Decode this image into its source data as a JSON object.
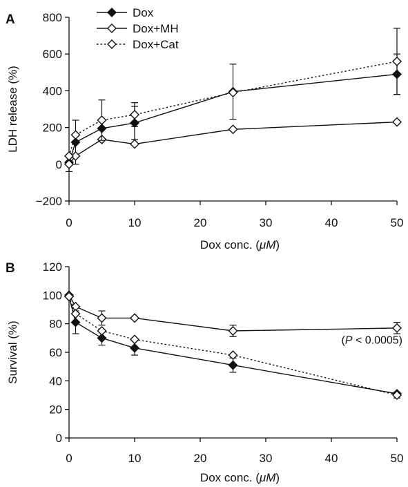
{
  "chart_data": [
    {
      "type": "line",
      "panel_label": "A",
      "title": "",
      "xlabel_main": "Dox conc. (",
      "xlabel_unit": "μM",
      "xlabel_close": ")",
      "ylabel": "LDH release (%)",
      "xlim": [
        0,
        50
      ],
      "ylim": [
        -200,
        800
      ],
      "xticks": [
        0,
        10,
        20,
        30,
        40,
        50
      ],
      "yticks": [
        -200,
        0,
        200,
        400,
        600,
        800
      ],
      "ytick_labels": [
        "−200",
        "0",
        "200",
        "400",
        "600",
        "800"
      ],
      "grid": false,
      "legend_position": "top-left",
      "x": [
        0,
        1,
        5,
        10,
        25,
        50
      ],
      "series": [
        {
          "name": "Dox",
          "marker": "filled-diamond",
          "line": "solid",
          "values": [
            10,
            120,
            195,
            225,
            395,
            490
          ],
          "error": [
            null,
            120,
            null,
            90,
            150,
            110
          ]
        },
        {
          "name": "Dox+MH",
          "marker": "open-diamond",
          "line": "solid",
          "values": [
            0,
            45,
            135,
            110,
            190,
            230
          ],
          "error": [
            40,
            null,
            null,
            null,
            null,
            null
          ]
        },
        {
          "name": "Dox+Cat",
          "marker": "open-diamond",
          "line": "dotted",
          "values": [
            45,
            160,
            240,
            270,
            390,
            560
          ],
          "error": [
            null,
            null,
            110,
            65,
            null,
            180
          ]
        }
      ]
    },
    {
      "type": "line",
      "panel_label": "B",
      "title": "",
      "xlabel_main": "Dox conc. (",
      "xlabel_unit": "μM",
      "xlabel_close": ")",
      "ylabel": "Survival (%)",
      "xlim": [
        0,
        50
      ],
      "ylim": [
        0,
        120
      ],
      "xticks": [
        0,
        10,
        20,
        30,
        40,
        50
      ],
      "yticks": [
        0,
        20,
        40,
        60,
        80,
        100,
        120
      ],
      "ytick_labels": [
        "0",
        "20",
        "40",
        "60",
        "80",
        "100",
        "120"
      ],
      "grid": false,
      "annotation": {
        "p_italic": "P",
        "rest": " < 0.0005)",
        "open": "(",
        "x": 50,
        "y": 66
      },
      "x": [
        0,
        1,
        5,
        10,
        25,
        50
      ],
      "series": [
        {
          "name": "Dox",
          "marker": "filled-diamond",
          "line": "solid",
          "values": [
            99,
            81,
            70,
            63,
            51,
            31
          ],
          "error": [
            null,
            8,
            5,
            5,
            5,
            null
          ]
        },
        {
          "name": "Dox+MH",
          "marker": "open-diamond",
          "line": "solid",
          "values": [
            100,
            92,
            84,
            84,
            75,
            77
          ],
          "error": [
            null,
            null,
            5,
            null,
            4,
            4
          ]
        },
        {
          "name": "Dox+Cat",
          "marker": "open-diamond",
          "line": "dotted",
          "values": [
            99,
            87,
            75,
            69,
            58,
            30
          ],
          "error": [
            null,
            null,
            null,
            null,
            null,
            2
          ]
        }
      ]
    }
  ]
}
